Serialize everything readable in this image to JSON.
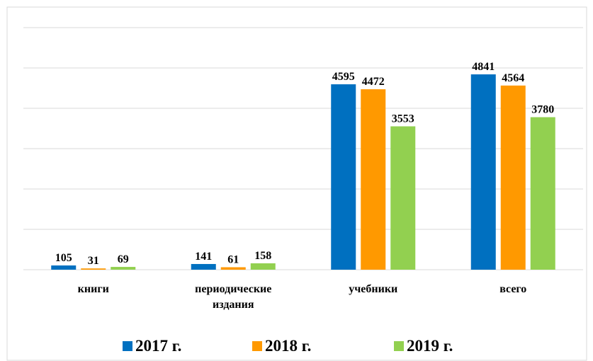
{
  "chart_data": {
    "type": "bar",
    "categories": [
      "книги",
      "периодические издания",
      "учебники",
      "всего"
    ],
    "series": [
      {
        "name": "2017 г.",
        "color": "#0070c0",
        "values": [
          105,
          141,
          4595,
          4841
        ]
      },
      {
        "name": "2018 г.",
        "color": "#ff9900",
        "values": [
          31,
          61,
          4472,
          4564
        ]
      },
      {
        "name": "2019 г.",
        "color": "#92d050",
        "values": [
          69,
          158,
          3553,
          3780
        ]
      }
    ],
    "ylim": [
      0,
      6000
    ],
    "yticks": [
      0,
      1000,
      2000,
      3000,
      4000,
      5000,
      6000
    ],
    "grid": true,
    "legend": "bottom"
  }
}
